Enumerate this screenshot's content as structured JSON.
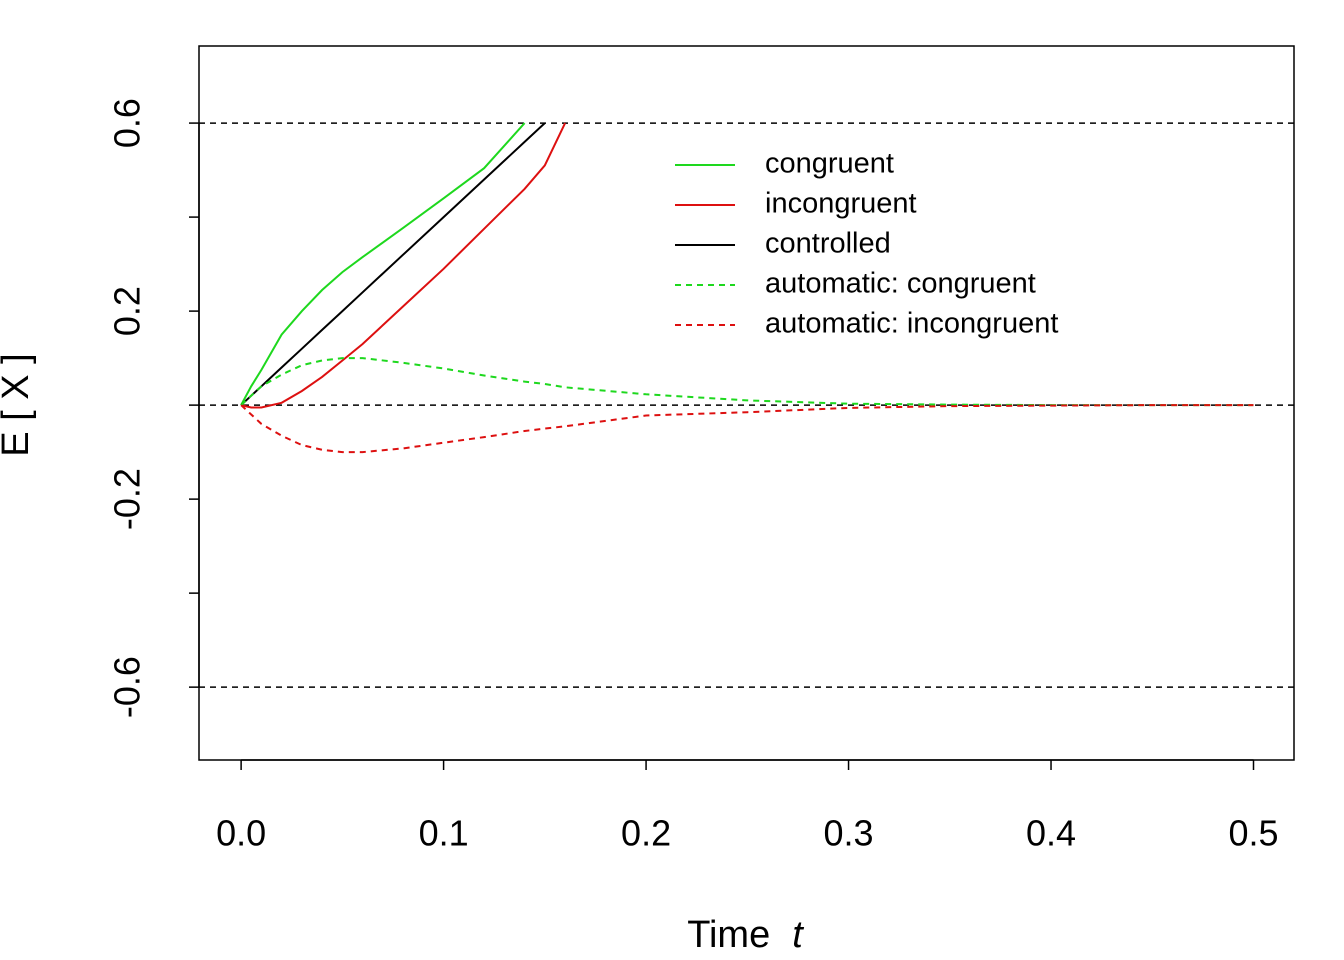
{
  "chart_data": {
    "type": "line",
    "xlabel": "Time",
    "xlabel_var": "t",
    "ylabel": "E [ X ]",
    "x": [
      0,
      0.005,
      0.01,
      0.02,
      0.03,
      0.04,
      0.05,
      0.06,
      0.08,
      0.1,
      0.12,
      0.14,
      0.15,
      0.16,
      0.2,
      0.25,
      0.3,
      0.35,
      0.4,
      0.45,
      0.5
    ],
    "series": [
      {
        "name": "congruent",
        "color": "#1ed81e",
        "dash": false,
        "values": [
          0,
          0.04,
          0.075,
          0.15,
          0.2,
          0.245,
          0.283,
          0.315,
          0.377,
          0.44,
          0.504,
          0.6,
          null,
          null,
          null,
          null,
          null,
          null,
          null,
          null,
          null
        ]
      },
      {
        "name": "incongruent",
        "color": "#dd1010",
        "dash": false,
        "values": [
          0,
          -0.005,
          -0.005,
          0.005,
          0.03,
          0.06,
          0.095,
          0.13,
          0.21,
          0.29,
          0.375,
          0.46,
          0.51,
          0.6,
          null,
          null,
          null,
          null,
          null,
          null,
          null
        ]
      },
      {
        "name": "controlled",
        "color": "#000000",
        "dash": false,
        "values": [
          0,
          0.02,
          0.04,
          0.08,
          0.12,
          0.16,
          0.2,
          0.24,
          0.32,
          0.4,
          0.48,
          0.56,
          0.6,
          null,
          null,
          null,
          null,
          null,
          null,
          null,
          null
        ]
      },
      {
        "name": "automatic: congruent",
        "color": "#1ed81e",
        "dash": true,
        "values": [
          0,
          0.02,
          0.04,
          0.065,
          0.085,
          0.095,
          0.1,
          0.1,
          0.09,
          0.078,
          0.063,
          0.05,
          0.045,
          0.038,
          0.023,
          0.01,
          0.003,
          0.001,
          0,
          0,
          0
        ]
      },
      {
        "name": "automatic: incongruent",
        "color": "#dd1010",
        "dash": true,
        "values": [
          0,
          -0.02,
          -0.04,
          -0.065,
          -0.085,
          -0.095,
          -0.1,
          -0.1,
          -0.092,
          -0.08,
          -0.068,
          -0.055,
          -0.05,
          -0.045,
          -0.022,
          -0.015,
          -0.006,
          -0.002,
          -0.001,
          0,
          0
        ]
      }
    ],
    "xlim": [
      -0.0208,
      0.52
    ],
    "ylim": [
      -0.755,
      0.764
    ],
    "xticks": [
      {
        "value": 0,
        "label": "0.0"
      },
      0.1,
      0.2,
      0.3,
      0.4,
      0.5
    ],
    "yticks": [
      0.6,
      0.2,
      -0.2,
      -0.6
    ],
    "yminor_ticks": [
      0.4,
      0,
      -0.4
    ],
    "hlines": [
      0.6,
      0,
      -0.6
    ],
    "legend": "top-right"
  }
}
